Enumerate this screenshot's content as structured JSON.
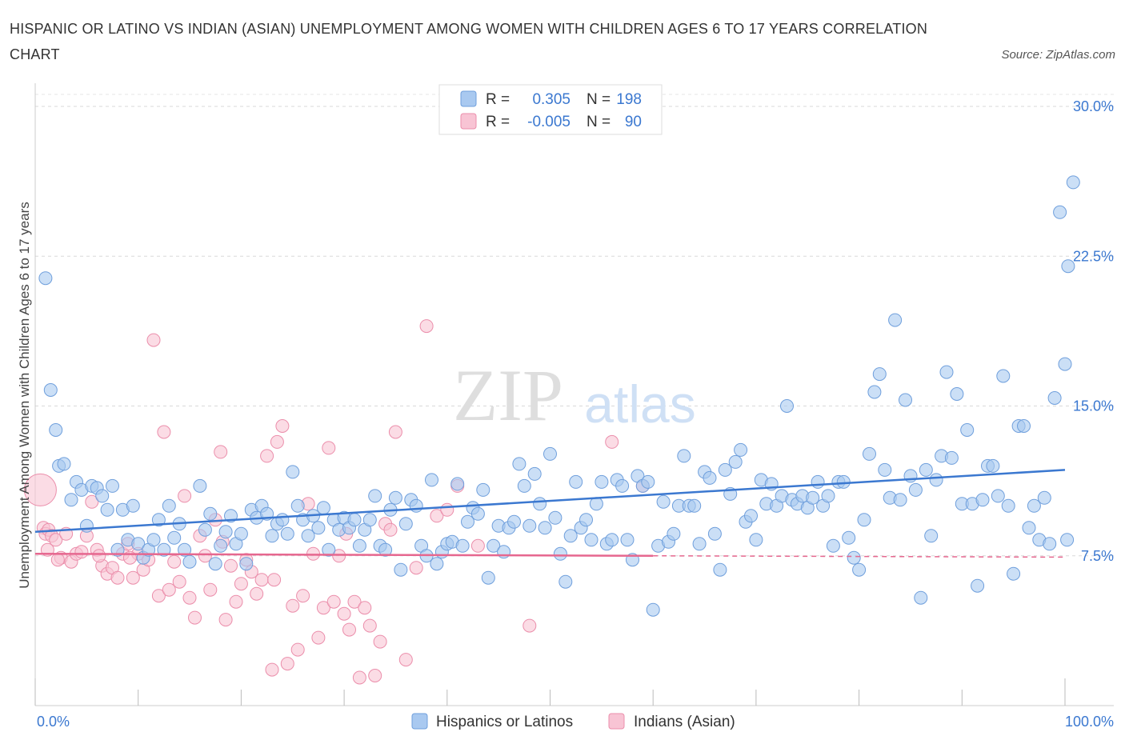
{
  "title": "HISPANIC OR LATINO VS INDIAN (ASIAN) UNEMPLOYMENT AMONG WOMEN WITH CHILDREN AGES 6 TO 17 YEARS CORRELATION CHART",
  "source": "Source: ZipAtlas.com",
  "watermark": {
    "zip": "ZIP",
    "atlas": "atlas"
  },
  "legend_box": [
    {
      "r_label": "R =",
      "r_value": "0.305",
      "n_label": "N =",
      "n_value": "198",
      "color": "#7eaee8"
    },
    {
      "r_label": "R =",
      "r_value": "-0.005",
      "n_label": "N =",
      "n_value": "90",
      "color": "#f4a6bf"
    }
  ],
  "bottom_legend": [
    "Hispanics or Latinos",
    "Indians (Asian)"
  ],
  "colors": {
    "blue_fill": "#a9c9f0",
    "blue_stroke": "#6f9fdc",
    "blue_line": "#3b78d0",
    "pink_fill": "#f8c4d4",
    "pink_stroke": "#eb8eab",
    "pink_line": "#e6678f",
    "axis_text": "#3b78d0"
  },
  "chart_data": {
    "type": "scatter",
    "ylabel": "Unemployment Among Women with Children Ages 6 to 17 years",
    "x_tick_labels": [
      "0.0%",
      "100.0%"
    ],
    "y_tick_labels": [
      "7.5%",
      "15.0%",
      "22.5%",
      "30.0%"
    ],
    "y_ticks": [
      7.5,
      15.0,
      22.5,
      30.0
    ],
    "xlim": [
      0,
      100
    ],
    "ylim": [
      0,
      30
    ],
    "grid": true,
    "legend": "top-center",
    "series": [
      {
        "name": "Hispanics or Latinos",
        "r": 0.305,
        "n": 198,
        "trend": {
          "x0": 0,
          "y0": 8.7,
          "x1": 100,
          "y1": 11.8
        },
        "points": [
          [
            1,
            21.4
          ],
          [
            1.5,
            15.8
          ],
          [
            2,
            13.8
          ],
          [
            2.3,
            12
          ],
          [
            2.8,
            12.1
          ],
          [
            3.5,
            10.3
          ],
          [
            4,
            11.2
          ],
          [
            4.5,
            10.8
          ],
          [
            5,
            9
          ],
          [
            5.5,
            11
          ],
          [
            6,
            10.9
          ],
          [
            6.5,
            10.5
          ],
          [
            7,
            9.8
          ],
          [
            7.5,
            11
          ],
          [
            8,
            7.8
          ],
          [
            8.5,
            9.8
          ],
          [
            9,
            8.3
          ],
          [
            9.5,
            10
          ],
          [
            10,
            8.1
          ],
          [
            10.5,
            7.4
          ],
          [
            11,
            7.8
          ],
          [
            11.5,
            8.3
          ],
          [
            12,
            9.3
          ],
          [
            12.5,
            7.8
          ],
          [
            13,
            10
          ],
          [
            13.5,
            8.4
          ],
          [
            14,
            9.1
          ],
          [
            14.5,
            7.8
          ],
          [
            15,
            7.2
          ],
          [
            16,
            11
          ],
          [
            16.5,
            8.8
          ],
          [
            17,
            9.6
          ],
          [
            17.5,
            7.1
          ],
          [
            18,
            8
          ],
          [
            18.5,
            8.7
          ],
          [
            19,
            9.5
          ],
          [
            19.5,
            8.1
          ],
          [
            20,
            8.6
          ],
          [
            20.5,
            7.1
          ],
          [
            21,
            9.8
          ],
          [
            21.5,
            9.4
          ],
          [
            22,
            10
          ],
          [
            22.5,
            9.6
          ],
          [
            23,
            8.5
          ],
          [
            23.5,
            9.1
          ],
          [
            24,
            9.3
          ],
          [
            24.5,
            8.6
          ],
          [
            25,
            11.7
          ],
          [
            25.5,
            10
          ],
          [
            26,
            9.3
          ],
          [
            26.5,
            8.5
          ],
          [
            27,
            9.5
          ],
          [
            27.5,
            8.9
          ],
          [
            28,
            9.9
          ],
          [
            28.5,
            7.8
          ],
          [
            29,
            9.3
          ],
          [
            29.5,
            8.8
          ],
          [
            30,
            9.4
          ],
          [
            30.5,
            8.9
          ],
          [
            31,
            9.3
          ],
          [
            31.5,
            8
          ],
          [
            32,
            8.8
          ],
          [
            32.5,
            9.3
          ],
          [
            33,
            10.5
          ],
          [
            33.5,
            8
          ],
          [
            34,
            7.8
          ],
          [
            34.5,
            9.8
          ],
          [
            35,
            10.4
          ],
          [
            35.5,
            6.8
          ],
          [
            36,
            9.1
          ],
          [
            36.5,
            10.3
          ],
          [
            37,
            10
          ],
          [
            37.5,
            8
          ],
          [
            38,
            7.5
          ],
          [
            38.5,
            11.3
          ],
          [
            39,
            7.1
          ],
          [
            39.5,
            7.7
          ],
          [
            40,
            8.1
          ],
          [
            40.5,
            8.2
          ],
          [
            41,
            11.1
          ],
          [
            41.5,
            8
          ],
          [
            42,
            9.2
          ],
          [
            42.5,
            9.9
          ],
          [
            43,
            9.6
          ],
          [
            43.5,
            10.8
          ],
          [
            44,
            6.4
          ],
          [
            44.5,
            8
          ],
          [
            45,
            9
          ],
          [
            45.5,
            7.7
          ],
          [
            46,
            8.9
          ],
          [
            46.5,
            9.2
          ],
          [
            47,
            12.1
          ],
          [
            47.5,
            11
          ],
          [
            48,
            9
          ],
          [
            48.5,
            11.6
          ],
          [
            49,
            10.1
          ],
          [
            49.5,
            8.9
          ],
          [
            50,
            12.6
          ],
          [
            50.5,
            9.4
          ],
          [
            51,
            7.6
          ],
          [
            51.5,
            6.2
          ],
          [
            52,
            8.5
          ],
          [
            52.5,
            11.2
          ],
          [
            53,
            8.9
          ],
          [
            53.5,
            9.3
          ],
          [
            54,
            8.3
          ],
          [
            54.5,
            10.1
          ],
          [
            55,
            11.2
          ],
          [
            55.5,
            8.1
          ],
          [
            56,
            8.3
          ],
          [
            56.5,
            11.3
          ],
          [
            57,
            11
          ],
          [
            57.5,
            8.3
          ],
          [
            58,
            7.3
          ],
          [
            58.5,
            11.5
          ],
          [
            59,
            11
          ],
          [
            59.5,
            11.2
          ],
          [
            60,
            4.8
          ],
          [
            60.5,
            8
          ],
          [
            61,
            10.2
          ],
          [
            61.5,
            8.2
          ],
          [
            62,
            8.6
          ],
          [
            62.5,
            10
          ],
          [
            63,
            12.5
          ],
          [
            63.5,
            10
          ],
          [
            64,
            10
          ],
          [
            64.5,
            8.1
          ],
          [
            65,
            11.7
          ],
          [
            65.5,
            11.4
          ],
          [
            66,
            8.6
          ],
          [
            66.5,
            6.8
          ],
          [
            67,
            11.8
          ],
          [
            67.5,
            10.6
          ],
          [
            68,
            12.2
          ],
          [
            68.5,
            12.8
          ],
          [
            69,
            9.2
          ],
          [
            69.5,
            9.5
          ],
          [
            70,
            8.3
          ],
          [
            70.5,
            11.3
          ],
          [
            71,
            10.1
          ],
          [
            71.5,
            11.1
          ],
          [
            72,
            10
          ],
          [
            72.5,
            10.5
          ],
          [
            73,
            15
          ],
          [
            73.5,
            10.3
          ],
          [
            74,
            10.1
          ],
          [
            74.5,
            10.5
          ],
          [
            75,
            9.9
          ],
          [
            75.5,
            10.4
          ],
          [
            76,
            11.2
          ],
          [
            76.5,
            10
          ],
          [
            77,
            10.5
          ],
          [
            77.5,
            8
          ],
          [
            78,
            11.2
          ],
          [
            78.5,
            11.2
          ],
          [
            79,
            8.4
          ],
          [
            79.5,
            7.4
          ],
          [
            80,
            6.8
          ],
          [
            80.5,
            9.3
          ],
          [
            81,
            12.6
          ],
          [
            81.5,
            15.7
          ],
          [
            82,
            16.6
          ],
          [
            82.5,
            11.8
          ],
          [
            83,
            10.4
          ],
          [
            83.5,
            19.3
          ],
          [
            84,
            10.3
          ],
          [
            84.5,
            15.3
          ],
          [
            85,
            11.5
          ],
          [
            85.5,
            10.8
          ],
          [
            86,
            5.4
          ],
          [
            86.5,
            11.8
          ],
          [
            87,
            8.5
          ],
          [
            87.5,
            11.3
          ],
          [
            88,
            12.5
          ],
          [
            88.5,
            16.7
          ],
          [
            89,
            12.4
          ],
          [
            89.5,
            15.6
          ],
          [
            90,
            10.1
          ],
          [
            90.5,
            13.8
          ],
          [
            91,
            10.1
          ],
          [
            91.5,
            6
          ],
          [
            92,
            10.3
          ],
          [
            92.5,
            12
          ],
          [
            93,
            12
          ],
          [
            93.5,
            10.5
          ],
          [
            94,
            16.5
          ],
          [
            94.5,
            10
          ],
          [
            95,
            6.6
          ],
          [
            95.5,
            14
          ],
          [
            96,
            14
          ],
          [
            96.5,
            8.9
          ],
          [
            97,
            10
          ],
          [
            97.5,
            8.3
          ],
          [
            98,
            10.4
          ],
          [
            98.5,
            8.1
          ],
          [
            99,
            15.4
          ],
          [
            99.5,
            24.7
          ],
          [
            100,
            17.1
          ],
          [
            100.3,
            22
          ],
          [
            100.8,
            26.2
          ],
          [
            100.2,
            8.3
          ]
        ]
      },
      {
        "name": "Indians (Asian)",
        "r": -0.005,
        "n": 90,
        "trend": {
          "x0": 0,
          "y0": 7.6,
          "x1": 60,
          "y1": 7.5,
          "dash_to": 100
        },
        "points": [
          [
            0.5,
            10.8
          ],
          [
            0.8,
            8.9
          ],
          [
            1,
            8.6
          ],
          [
            1.3,
            8.8
          ],
          [
            1.6,
            8.5
          ],
          [
            2,
            8.3
          ],
          [
            2.5,
            7.4
          ],
          [
            3,
            8.6
          ],
          [
            3.5,
            7.2
          ],
          [
            4,
            7.6
          ],
          [
            4.5,
            7.7
          ],
          [
            5,
            8.5
          ],
          [
            5.5,
            10.2
          ],
          [
            6,
            7.8
          ],
          [
            6.5,
            7
          ],
          [
            7,
            6.6
          ],
          [
            7.5,
            6.9
          ],
          [
            8,
            6.4
          ],
          [
            8.5,
            7.6
          ],
          [
            9,
            8.1
          ],
          [
            9.5,
            6.4
          ],
          [
            10,
            7.6
          ],
          [
            10.5,
            6.8
          ],
          [
            11,
            7.3
          ],
          [
            11.5,
            18.3
          ],
          [
            12,
            5.5
          ],
          [
            12.5,
            13.7
          ],
          [
            13,
            5.8
          ],
          [
            13.5,
            7.2
          ],
          [
            14,
            6.2
          ],
          [
            14.5,
            10.5
          ],
          [
            15,
            5.4
          ],
          [
            15.5,
            4.4
          ],
          [
            16,
            8.5
          ],
          [
            16.5,
            7.5
          ],
          [
            17,
            5.8
          ],
          [
            17.5,
            9.3
          ],
          [
            18,
            12.7
          ],
          [
            18.5,
            4.3
          ],
          [
            19,
            7
          ],
          [
            19.5,
            5.2
          ],
          [
            20,
            6.1
          ],
          [
            20.5,
            7.3
          ],
          [
            21,
            6.7
          ],
          [
            21.5,
            5.6
          ],
          [
            22,
            6.3
          ],
          [
            22.5,
            12.5
          ],
          [
            23,
            1.8
          ],
          [
            23.5,
            13.2
          ],
          [
            24,
            14
          ],
          [
            24.5,
            2.1
          ],
          [
            25,
            5
          ],
          [
            25.5,
            2.8
          ],
          [
            26,
            5.5
          ],
          [
            26.5,
            10.1
          ],
          [
            27,
            7.6
          ],
          [
            27.5,
            3.4
          ],
          [
            28,
            4.9
          ],
          [
            28.5,
            12.9
          ],
          [
            29,
            5.2
          ],
          [
            29.5,
            7.5
          ],
          [
            30,
            4.6
          ],
          [
            30.5,
            3.8
          ],
          [
            31,
            5.2
          ],
          [
            31.5,
            1.4
          ],
          [
            32,
            4.9
          ],
          [
            32.5,
            4
          ],
          [
            33,
            1.5
          ],
          [
            33.5,
            3.2
          ],
          [
            34,
            9.1
          ],
          [
            34.5,
            8.8
          ],
          [
            35,
            13.7
          ],
          [
            36,
            2.3
          ],
          [
            37,
            6.9
          ],
          [
            38,
            19
          ],
          [
            39,
            9.5
          ],
          [
            40,
            9.8
          ],
          [
            41,
            11
          ],
          [
            43,
            8
          ],
          [
            48,
            4
          ],
          [
            56,
            13.2
          ],
          [
            59,
            11
          ],
          [
            1.2,
            7.8
          ],
          [
            2.2,
            7.3
          ],
          [
            6.2,
            7.5
          ],
          [
            9.2,
            7.4
          ],
          [
            18.2,
            8.2
          ],
          [
            23.2,
            6.3
          ],
          [
            30.2,
            8.6
          ]
        ]
      }
    ]
  }
}
